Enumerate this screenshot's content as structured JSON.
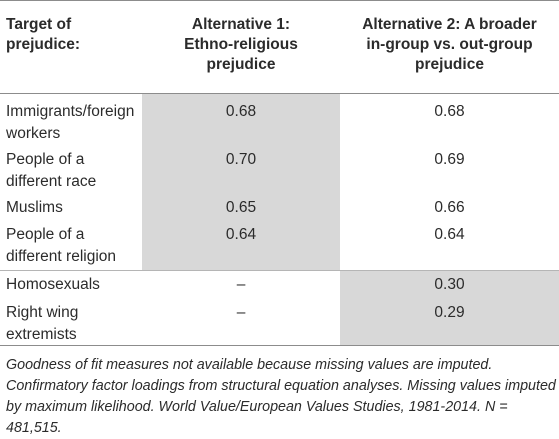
{
  "table": {
    "headers": {
      "col0": [
        "Target of",
        "prejudice:"
      ],
      "col1": [
        "Alternative 1:",
        "Ethno-religious",
        "prejudice"
      ],
      "col2": [
        "Alternative 2: A broader",
        "in-group vs. out-group",
        "prejudice"
      ]
    },
    "rows": [
      {
        "label": [
          "Immigrants/foreign",
          "workers"
        ],
        "alt1": "0.68",
        "alt2": "0.68"
      },
      {
        "label": [
          "People of a",
          "different race"
        ],
        "alt1": "0.70",
        "alt2": "0.69"
      },
      {
        "label": [
          "Muslims"
        ],
        "alt1": "0.65",
        "alt2": "0.66"
      },
      {
        "label": [
          "People of a",
          "different religion"
        ],
        "alt1": "0.64",
        "alt2": "0.64"
      },
      {
        "label": [
          "Homosexuals"
        ],
        "alt1": "–",
        "alt2": "0.30"
      },
      {
        "label": [
          "Right wing",
          "extremists"
        ],
        "alt1": "–",
        "alt2": "0.29"
      }
    ],
    "shade_color": "#d8d8d8"
  },
  "notes": [
    "Goodness of fit measures not available because missing values are imputed.",
    "Confirmatory factor loadings from structural equation analyses. Missing values imputed",
    "by maximum likelihood. World Value/European Values Studies, 1981-2014. N = 481,515."
  ]
}
